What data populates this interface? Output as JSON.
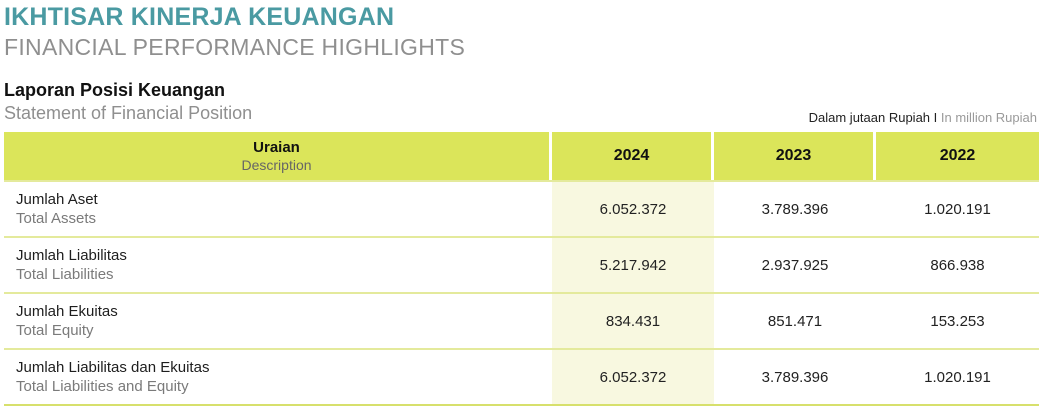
{
  "header": {
    "title_id": "IKHTISAR KINERJA KEUANGAN",
    "title_en": "FINANCIAL PERFORMANCE HIGHLIGHTS"
  },
  "section": {
    "title_id": "Laporan Posisi Keuangan",
    "title_en": "Statement of Financial Position",
    "unit_id": "Dalam jutaan Rupiah I",
    "unit_en": "In million Rupiah"
  },
  "table": {
    "desc_header_id": "Uraian",
    "desc_header_en": "Description",
    "years": [
      "2024",
      "2023",
      "2022"
    ],
    "rows": [
      {
        "label_id": "Jumlah Aset",
        "label_en": "Total Assets",
        "values": [
          "6.052.372",
          "3.789.396",
          "1.020.191"
        ]
      },
      {
        "label_id": "Jumlah Liabilitas",
        "label_en": "Total Liabilities",
        "values": [
          "5.217.942",
          "2.937.925",
          "866.938"
        ]
      },
      {
        "label_id": "Jumlah Ekuitas",
        "label_en": "Total Equity",
        "values": [
          "834.431",
          "851.471",
          "153.253"
        ]
      },
      {
        "label_id": "Jumlah Liabilitas dan Ekuitas",
        "label_en": "Total Liabilities and Equity",
        "values": [
          "6.052.372",
          "3.789.396",
          "1.020.191"
        ]
      }
    ]
  },
  "colors": {
    "title_teal": "#4a9aa2",
    "header_green": "#dbe55a",
    "highlight_column": "#f8f8e0"
  }
}
